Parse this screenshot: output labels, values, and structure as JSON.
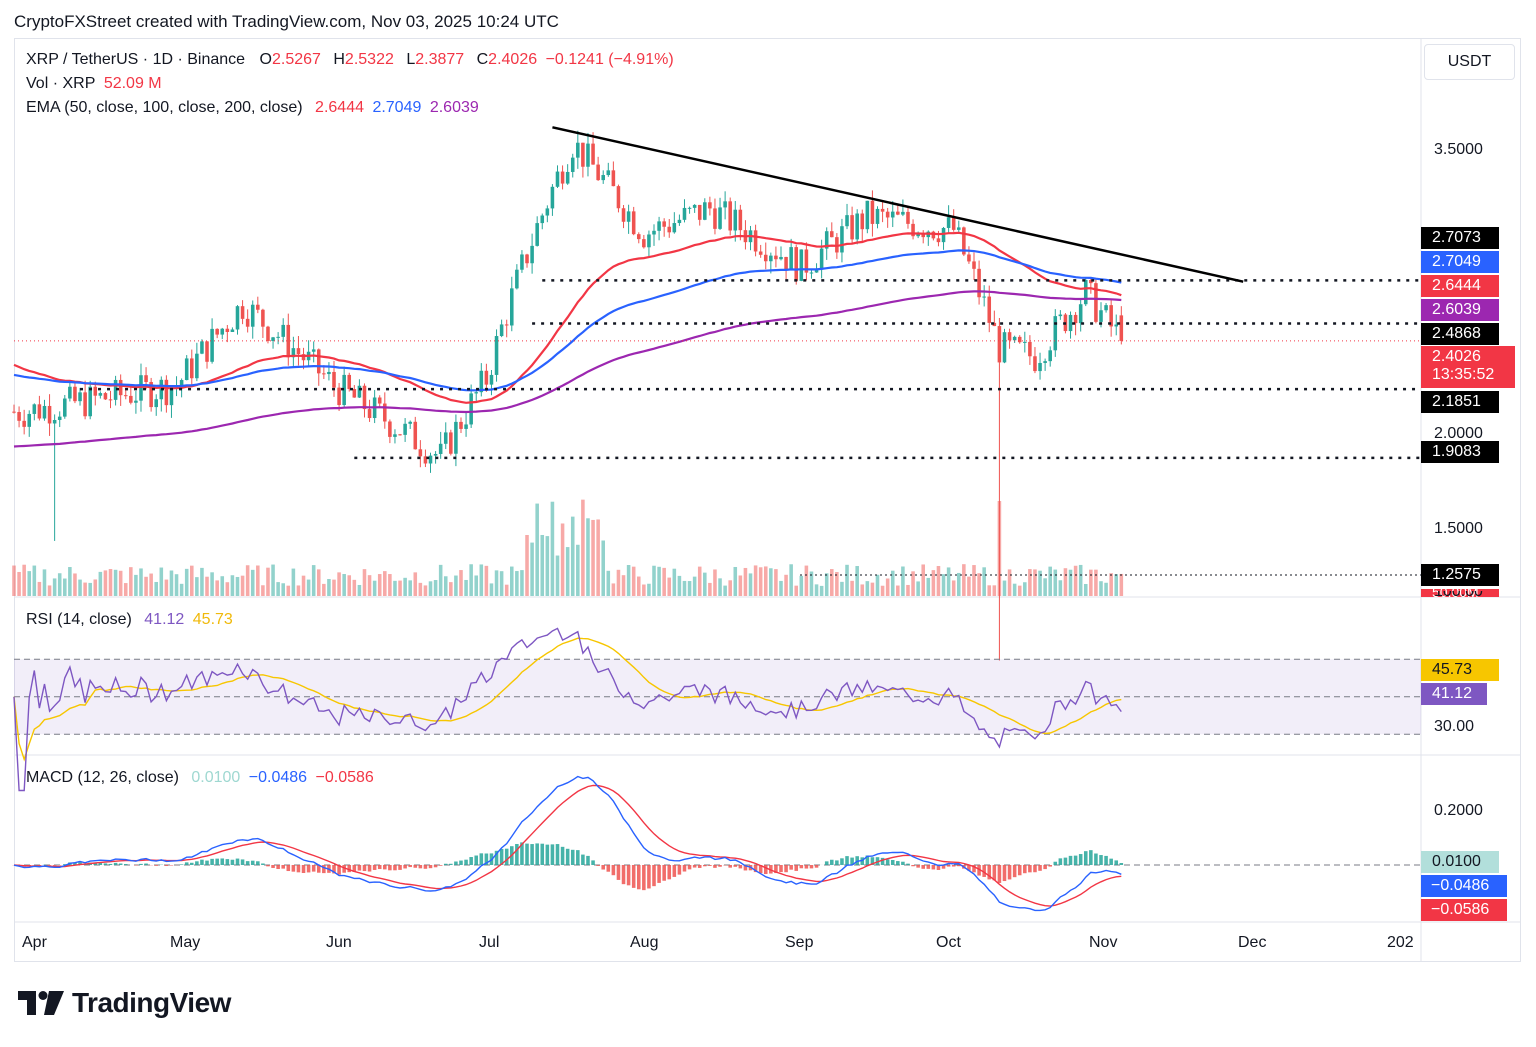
{
  "credit": "CryptoFXStreet created with TradingView.com, Nov 03, 2025 10:24 UTC",
  "currency": "USDT",
  "brand": "TradingView",
  "legend": {
    "symbol": "XRP / TetherUS · 1D · Binance",
    "o_label": "O",
    "o": "2.5267",
    "h_label": "H",
    "h": "2.5322",
    "l_label": "L",
    "l": "2.3877",
    "c_label": "C",
    "c": "2.4026",
    "change": "−0.1241 (−4.91%)",
    "vol_label": "Vol · XRP",
    "vol": "52.09 M",
    "ema_label": "EMA (50, close, 100, close, 200, close)",
    "ema50": "2.6444",
    "ema100": "2.7049",
    "ema200": "2.6039",
    "rsi_label": "RSI (14, close)",
    "rsi": "41.12",
    "rsi_ma": "45.73",
    "macd_label": "MACD (12, 26, close)",
    "macd_hist": "0.0100",
    "macd": "−0.0486",
    "macd_signal": "−0.0586"
  },
  "price_axis": [
    "3.5000",
    "2.0000",
    "1.5000",
    "100.00"
  ],
  "rsi_axis": [
    "30.00"
  ],
  "macd_axis": [
    "0.2000"
  ],
  "x_axis": [
    "Apr",
    "May",
    "Jun",
    "Jul",
    "Aug",
    "Sep",
    "Oct",
    "Nov",
    "Dec",
    "202"
  ],
  "price_tags": [
    {
      "label": "2.7073",
      "color": "#000000"
    },
    {
      "label": "2.7049",
      "color": "#2962ff"
    },
    {
      "label": "2.6444",
      "color": "#f23645"
    },
    {
      "label": "2.6039",
      "color": "#9c27b0"
    },
    {
      "label": "2.4868",
      "color": "#000000"
    },
    {
      "label": "2.4026",
      "color": "#f23645"
    },
    {
      "label": "13:35:52",
      "color": "#f23645"
    },
    {
      "label": "2.1851",
      "color": "#000000"
    },
    {
      "label": "1.9083",
      "color": "#000000"
    },
    {
      "label": "1.2575",
      "color": "#000000"
    },
    {
      "label": "50.00M",
      "color": "#f23645"
    }
  ],
  "rsi_tags": [
    {
      "label": "45.73",
      "color": "#f7c600"
    },
    {
      "label": "41.12",
      "color": "#7e57c2"
    }
  ],
  "macd_tags": [
    {
      "label": "0.0100",
      "color": "#b2dfdb"
    },
    {
      "label": "−0.0486",
      "color": "#2962ff"
    },
    {
      "label": "−0.0586",
      "color": "#f23645"
    }
  ],
  "chart_data": [
    {
      "type": "candlestick",
      "title": "XRP / TetherUS · 1D · Binance",
      "x_range": [
        "2025-03-30",
        "2026-01-01"
      ],
      "ylim": [
        1.25,
        3.85
      ],
      "y_scale": "log",
      "support_resistance_levels": [
        2.7073,
        2.4868,
        2.1851,
        1.9083,
        1.2575
      ],
      "trendline": {
        "from": {
          "date": "2025-07-14",
          "price": 3.66
        },
        "to": {
          "date": "2025-11-27",
          "price": 2.7
        }
      },
      "last_close": 2.4026,
      "monthly_close_approx": [
        {
          "date": "2025-04-01",
          "close": 2.09
        },
        {
          "date": "2025-05-01",
          "close": 2.2
        },
        {
          "date": "2025-05-14",
          "close": 2.58
        },
        {
          "date": "2025-06-01",
          "close": 2.2
        },
        {
          "date": "2025-06-22",
          "close": 1.91
        },
        {
          "date": "2025-07-01",
          "close": 2.23
        },
        {
          "date": "2025-07-18",
          "close": 3.55
        },
        {
          "date": "2025-08-01",
          "close": 2.97
        },
        {
          "date": "2025-08-14",
          "close": 3.12
        },
        {
          "date": "2025-09-01",
          "close": 2.78
        },
        {
          "date": "2025-09-14",
          "close": 3.07
        },
        {
          "date": "2025-10-01",
          "close": 2.99
        },
        {
          "date": "2025-10-10",
          "close": 2.37
        },
        {
          "date": "2025-10-17",
          "close": 2.33
        },
        {
          "date": "2025-10-27",
          "close": 2.64
        },
        {
          "date": "2025-11-03",
          "close": 2.4026
        }
      ],
      "series": [
        {
          "name": "EMA 50",
          "last": 2.6444,
          "color": "#f23645"
        },
        {
          "name": "EMA 100",
          "last": 2.7049,
          "color": "#2962ff"
        },
        {
          "name": "EMA 200",
          "last": 2.6039,
          "color": "#9c27b0"
        }
      ]
    },
    {
      "type": "bar",
      "title": "Vol · XRP",
      "last": "52.09 M"
    },
    {
      "type": "line",
      "title": "RSI (14, close)",
      "ylim": [
        20,
        100
      ],
      "bands": [
        70,
        50,
        30
      ],
      "series": [
        {
          "name": "RSI",
          "last": 41.12
        },
        {
          "name": "RSI MA",
          "last": 45.73
        }
      ]
    },
    {
      "type": "line",
      "title": "MACD (12, 26, close)",
      "ylim": [
        -0.13,
        0.3
      ],
      "series": [
        {
          "name": "Histogram",
          "last": 0.01
        },
        {
          "name": "MACD",
          "last": -0.0486
        },
        {
          "name": "Signal",
          "last": -0.0586
        }
      ]
    }
  ]
}
